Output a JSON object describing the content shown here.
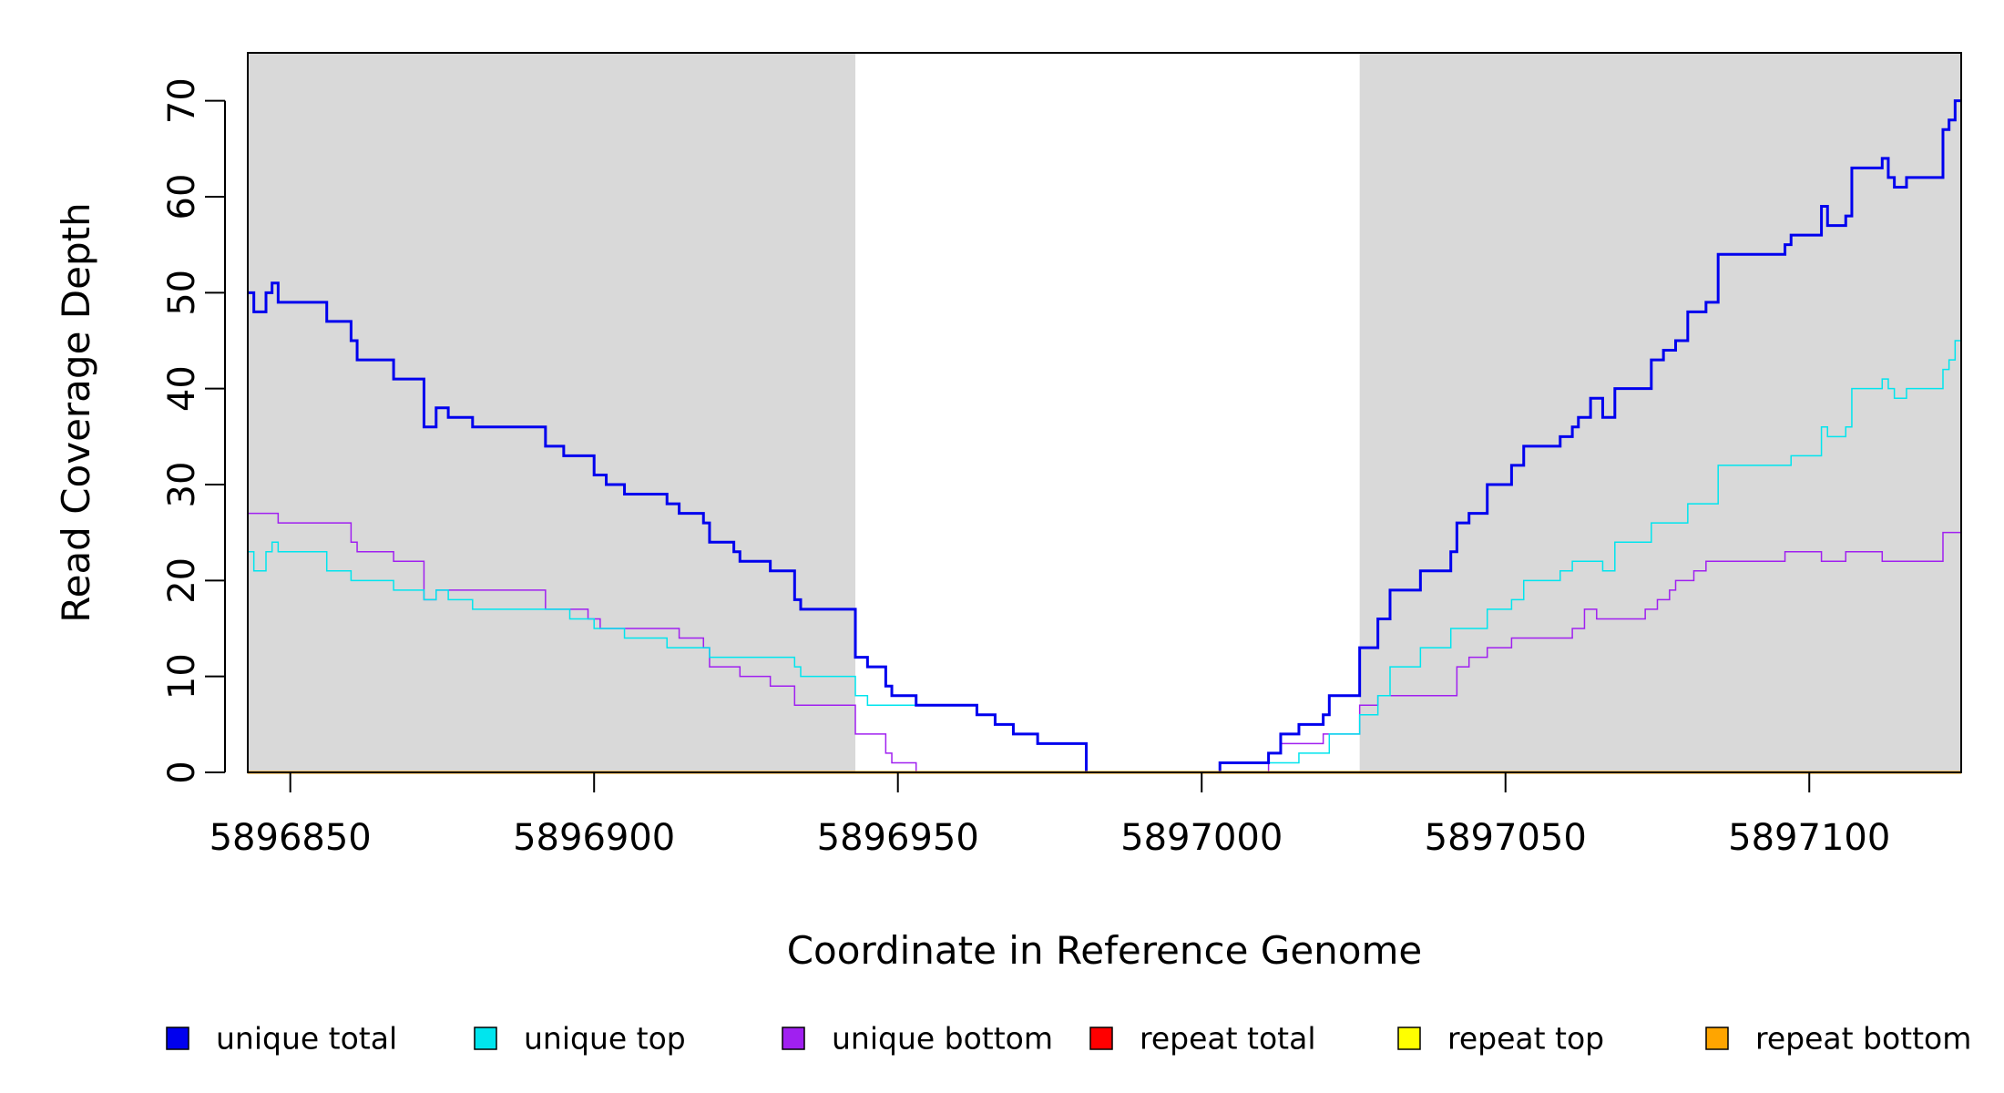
{
  "chart_data": {
    "type": "line",
    "xlabel": "Coordinate in Reference Genome",
    "ylabel": "Read Coverage Depth",
    "xlim": [
      5896843,
      5897125
    ],
    "ylim": [
      0,
      75
    ],
    "x_ticks": [
      5896850,
      5896900,
      5896950,
      5897000,
      5897050,
      5897100
    ],
    "y_ticks": [
      0,
      10,
      20,
      30,
      40,
      50,
      60,
      70
    ],
    "shaded_regions": [
      [
        5896843,
        5896943
      ],
      [
        5897026,
        5897125
      ]
    ],
    "shade_color": "#d9d9d9",
    "legend_position": "bottom",
    "series": [
      {
        "name": "unique total",
        "color": "#0000ee",
        "width": 3,
        "points": [
          [
            5896843,
            50
          ],
          [
            5896844,
            48
          ],
          [
            5896846,
            50
          ],
          [
            5896847,
            51
          ],
          [
            5896848,
            49
          ],
          [
            5896856,
            47
          ],
          [
            5896860,
            45
          ],
          [
            5896861,
            43
          ],
          [
            5896867,
            41
          ],
          [
            5896872,
            36
          ],
          [
            5896874,
            38
          ],
          [
            5896876,
            37
          ],
          [
            5896880,
            36
          ],
          [
            5896892,
            34
          ],
          [
            5896895,
            33
          ],
          [
            5896900,
            31
          ],
          [
            5896902,
            30
          ],
          [
            5896905,
            29
          ],
          [
            5896912,
            28
          ],
          [
            5896914,
            27
          ],
          [
            5896918,
            26
          ],
          [
            5896919,
            24
          ],
          [
            5896923,
            23
          ],
          [
            5896924,
            22
          ],
          [
            5896929,
            21
          ],
          [
            5896933,
            18
          ],
          [
            5896934,
            17
          ],
          [
            5896943,
            12
          ],
          [
            5896945,
            11
          ],
          [
            5896948,
            9
          ],
          [
            5896949,
            8
          ],
          [
            5896953,
            7
          ],
          [
            5896963,
            6
          ],
          [
            5896966,
            5
          ],
          [
            5896969,
            4
          ],
          [
            5896973,
            3
          ],
          [
            5896981,
            0
          ],
          [
            5897003,
            1
          ],
          [
            5897011,
            2
          ],
          [
            5897013,
            4
          ],
          [
            5897016,
            5
          ],
          [
            5897020,
            6
          ],
          [
            5897021,
            8
          ],
          [
            5897026,
            13
          ],
          [
            5897029,
            16
          ],
          [
            5897031,
            19
          ],
          [
            5897036,
            21
          ],
          [
            5897041,
            23
          ],
          [
            5897042,
            26
          ],
          [
            5897044,
            27
          ],
          [
            5897047,
            30
          ],
          [
            5897051,
            32
          ],
          [
            5897053,
            34
          ],
          [
            5897059,
            35
          ],
          [
            5897061,
            36
          ],
          [
            5897062,
            37
          ],
          [
            5897064,
            39
          ],
          [
            5897066,
            37
          ],
          [
            5897068,
            40
          ],
          [
            5897074,
            43
          ],
          [
            5897076,
            44
          ],
          [
            5897078,
            45
          ],
          [
            5897080,
            48
          ],
          [
            5897083,
            49
          ],
          [
            5897085,
            54
          ],
          [
            5897096,
            55
          ],
          [
            5897097,
            56
          ],
          [
            5897102,
            59
          ],
          [
            5897103,
            57
          ],
          [
            5897106,
            58
          ],
          [
            5897107,
            63
          ],
          [
            5897112,
            64
          ],
          [
            5897113,
            62
          ],
          [
            5897114,
            61
          ],
          [
            5897116,
            62
          ],
          [
            5897122,
            67
          ],
          [
            5897123,
            68
          ],
          [
            5897124,
            70
          ],
          [
            5897125,
            70
          ]
        ]
      },
      {
        "name": "unique top",
        "color": "#00e5ee",
        "width": 1.5,
        "points": [
          [
            5896843,
            23
          ],
          [
            5896844,
            21
          ],
          [
            5896846,
            23
          ],
          [
            5896847,
            24
          ],
          [
            5896848,
            23
          ],
          [
            5896856,
            21
          ],
          [
            5896860,
            20
          ],
          [
            5896867,
            19
          ],
          [
            5896872,
            18
          ],
          [
            5896874,
            19
          ],
          [
            5896876,
            18
          ],
          [
            5896880,
            17
          ],
          [
            5896892,
            17
          ],
          [
            5896896,
            16
          ],
          [
            5896900,
            15
          ],
          [
            5896905,
            14
          ],
          [
            5896912,
            13
          ],
          [
            5896918,
            13
          ],
          [
            5896919,
            12
          ],
          [
            5896923,
            12
          ],
          [
            5896929,
            12
          ],
          [
            5896933,
            11
          ],
          [
            5896934,
            10
          ],
          [
            5896943,
            8
          ],
          [
            5896945,
            7
          ],
          [
            5896953,
            7
          ],
          [
            5896963,
            6
          ],
          [
            5896966,
            5
          ],
          [
            5896969,
            4
          ],
          [
            5896973,
            3
          ],
          [
            5896981,
            0
          ],
          [
            5897003,
            1
          ],
          [
            5897011,
            1
          ],
          [
            5897013,
            1
          ],
          [
            5897016,
            2
          ],
          [
            5897021,
            4
          ],
          [
            5897026,
            6
          ],
          [
            5897029,
            8
          ],
          [
            5897031,
            11
          ],
          [
            5897036,
            13
          ],
          [
            5897041,
            15
          ],
          [
            5897047,
            17
          ],
          [
            5897051,
            18
          ],
          [
            5897053,
            20
          ],
          [
            5897059,
            21
          ],
          [
            5897061,
            22
          ],
          [
            5897066,
            21
          ],
          [
            5897068,
            24
          ],
          [
            5897074,
            26
          ],
          [
            5897080,
            28
          ],
          [
            5897085,
            32
          ],
          [
            5897097,
            33
          ],
          [
            5897102,
            36
          ],
          [
            5897103,
            35
          ],
          [
            5897106,
            36
          ],
          [
            5897107,
            40
          ],
          [
            5897112,
            41
          ],
          [
            5897113,
            40
          ],
          [
            5897114,
            39
          ],
          [
            5897116,
            40
          ],
          [
            5897122,
            42
          ],
          [
            5897123,
            43
          ],
          [
            5897124,
            45
          ],
          [
            5897125,
            45
          ]
        ]
      },
      {
        "name": "unique bottom",
        "color": "#a020f0",
        "width": 1.5,
        "points": [
          [
            5896843,
            27
          ],
          [
            5896848,
            26
          ],
          [
            5896860,
            24
          ],
          [
            5896861,
            23
          ],
          [
            5896867,
            22
          ],
          [
            5896872,
            18
          ],
          [
            5896874,
            19
          ],
          [
            5896892,
            17
          ],
          [
            5896899,
            16
          ],
          [
            5896901,
            15
          ],
          [
            5896914,
            14
          ],
          [
            5896918,
            13
          ],
          [
            5896919,
            11
          ],
          [
            5896924,
            10
          ],
          [
            5896929,
            9
          ],
          [
            5896933,
            7
          ],
          [
            5896943,
            4
          ],
          [
            5896948,
            2
          ],
          [
            5896949,
            1
          ],
          [
            5896953,
            0
          ],
          [
            5897011,
            2
          ],
          [
            5897013,
            3
          ],
          [
            5897020,
            4
          ],
          [
            5897026,
            7
          ],
          [
            5897029,
            8
          ],
          [
            5897042,
            11
          ],
          [
            5897044,
            12
          ],
          [
            5897047,
            13
          ],
          [
            5897051,
            14
          ],
          [
            5897061,
            15
          ],
          [
            5897063,
            17
          ],
          [
            5897065,
            16
          ],
          [
            5897073,
            17
          ],
          [
            5897075,
            18
          ],
          [
            5897077,
            19
          ],
          [
            5897078,
            20
          ],
          [
            5897081,
            21
          ],
          [
            5897083,
            22
          ],
          [
            5897096,
            23
          ],
          [
            5897102,
            22
          ],
          [
            5897106,
            23
          ],
          [
            5897112,
            22
          ],
          [
            5897122,
            25
          ],
          [
            5897125,
            25
          ]
        ]
      },
      {
        "name": "repeat total",
        "color": "#ff0000",
        "width": 1.5,
        "points": [
          [
            5896843,
            0
          ],
          [
            5897125,
            0
          ]
        ]
      },
      {
        "name": "repeat top",
        "color": "#ffff00",
        "width": 1.5,
        "points": [
          [
            5896843,
            0
          ],
          [
            5897125,
            0
          ]
        ]
      },
      {
        "name": "repeat bottom",
        "color": "#ffa500",
        "width": 3,
        "points": [
          [
            5896843,
            0
          ],
          [
            5897125,
            0
          ]
        ]
      }
    ]
  }
}
